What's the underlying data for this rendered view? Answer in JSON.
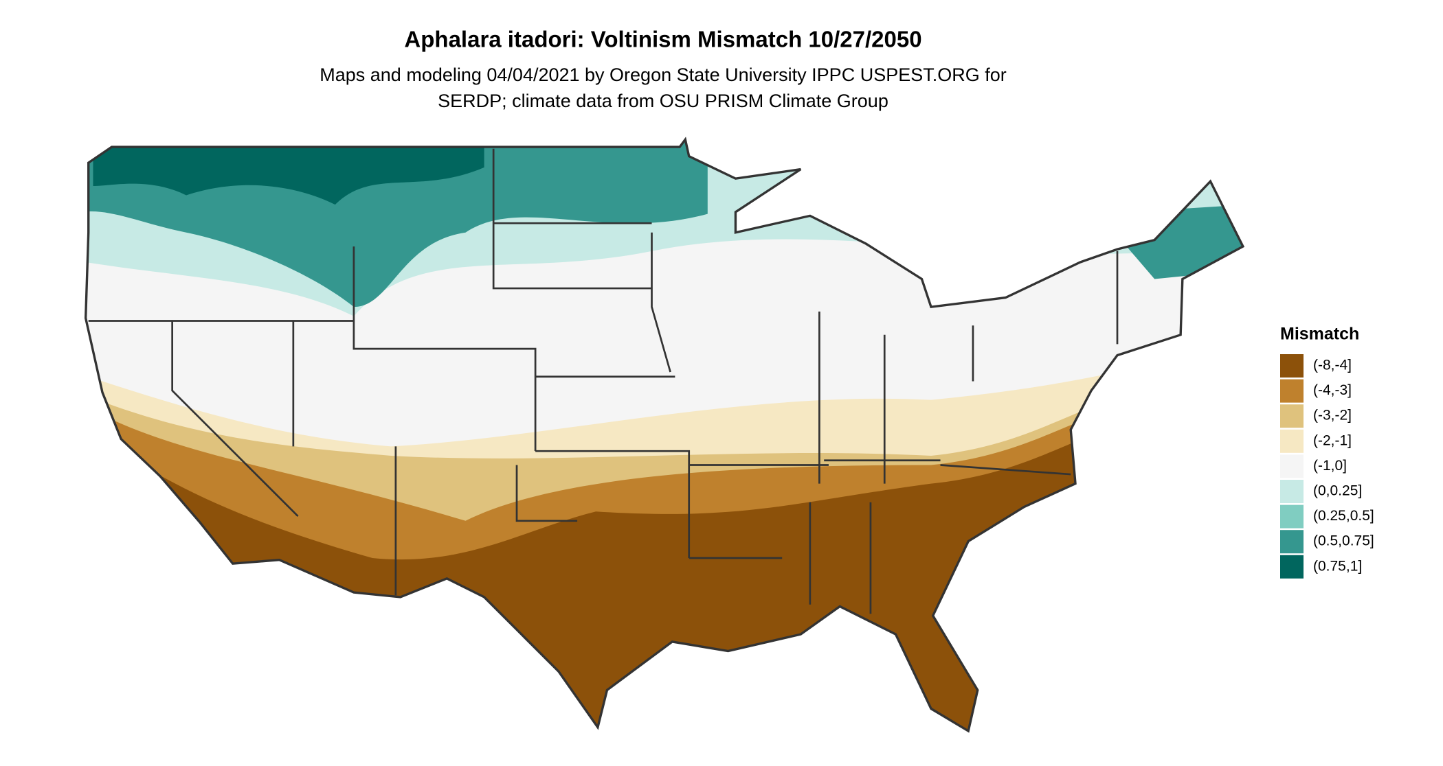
{
  "title": "Aphalara itadori: Voltinism Mismatch 10/27/2050",
  "subtitle": [
    "Maps and modeling 04/04/2021 by Oregon State University IPPC USPEST.ORG for",
    "SERDP; climate data from OSU PRISM Climate Group"
  ],
  "legend": {
    "title": "Mismatch",
    "items": [
      {
        "label": "(-8,-4]",
        "color": "#8c510a"
      },
      {
        "label": "(-4,-3]",
        "color": "#bf812d"
      },
      {
        "label": "(-3,-2]",
        "color": "#dfc27d"
      },
      {
        "label": "(-2,-1]",
        "color": "#f6e8c3"
      },
      {
        "label": "(-1,0]",
        "color": "#f5f5f5"
      },
      {
        "label": "(0,0.25]",
        "color": "#c7eae5"
      },
      {
        "label": "(0.25,0.5]",
        "color": "#80cdc1"
      },
      {
        "label": "(0.5,0.75]",
        "color": "#35978f"
      },
      {
        "label": "(0.75,1]",
        "color": "#01665e"
      }
    ]
  }
}
